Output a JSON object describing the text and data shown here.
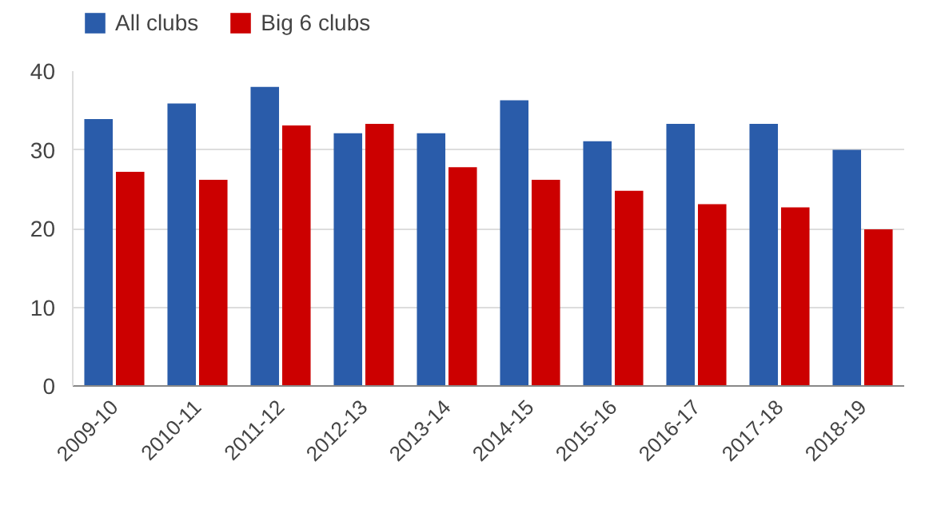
{
  "chart_data": {
    "type": "bar",
    "categories": [
      "2009-10",
      "2010-11",
      "2011-12",
      "2012-13",
      "2013-14",
      "2014-15",
      "2015-16",
      "2016-17",
      "2017-18",
      "2018-19"
    ],
    "series": [
      {
        "name": "All clubs",
        "color": "#2a5caa",
        "values": [
          33.9,
          35.9,
          38.0,
          32.1,
          32.1,
          36.3,
          31.1,
          33.3,
          33.3,
          30.0
        ]
      },
      {
        "name": "Big 6 clubs",
        "color": "#cc0000",
        "values": [
          27.2,
          26.2,
          33.1,
          33.3,
          27.8,
          26.2,
          24.8,
          23.1,
          22.7,
          19.9
        ]
      }
    ],
    "ylim": [
      0,
      40
    ],
    "yticks": [
      0,
      10,
      20,
      30,
      40
    ],
    "grid": "y",
    "legend": "top left"
  }
}
